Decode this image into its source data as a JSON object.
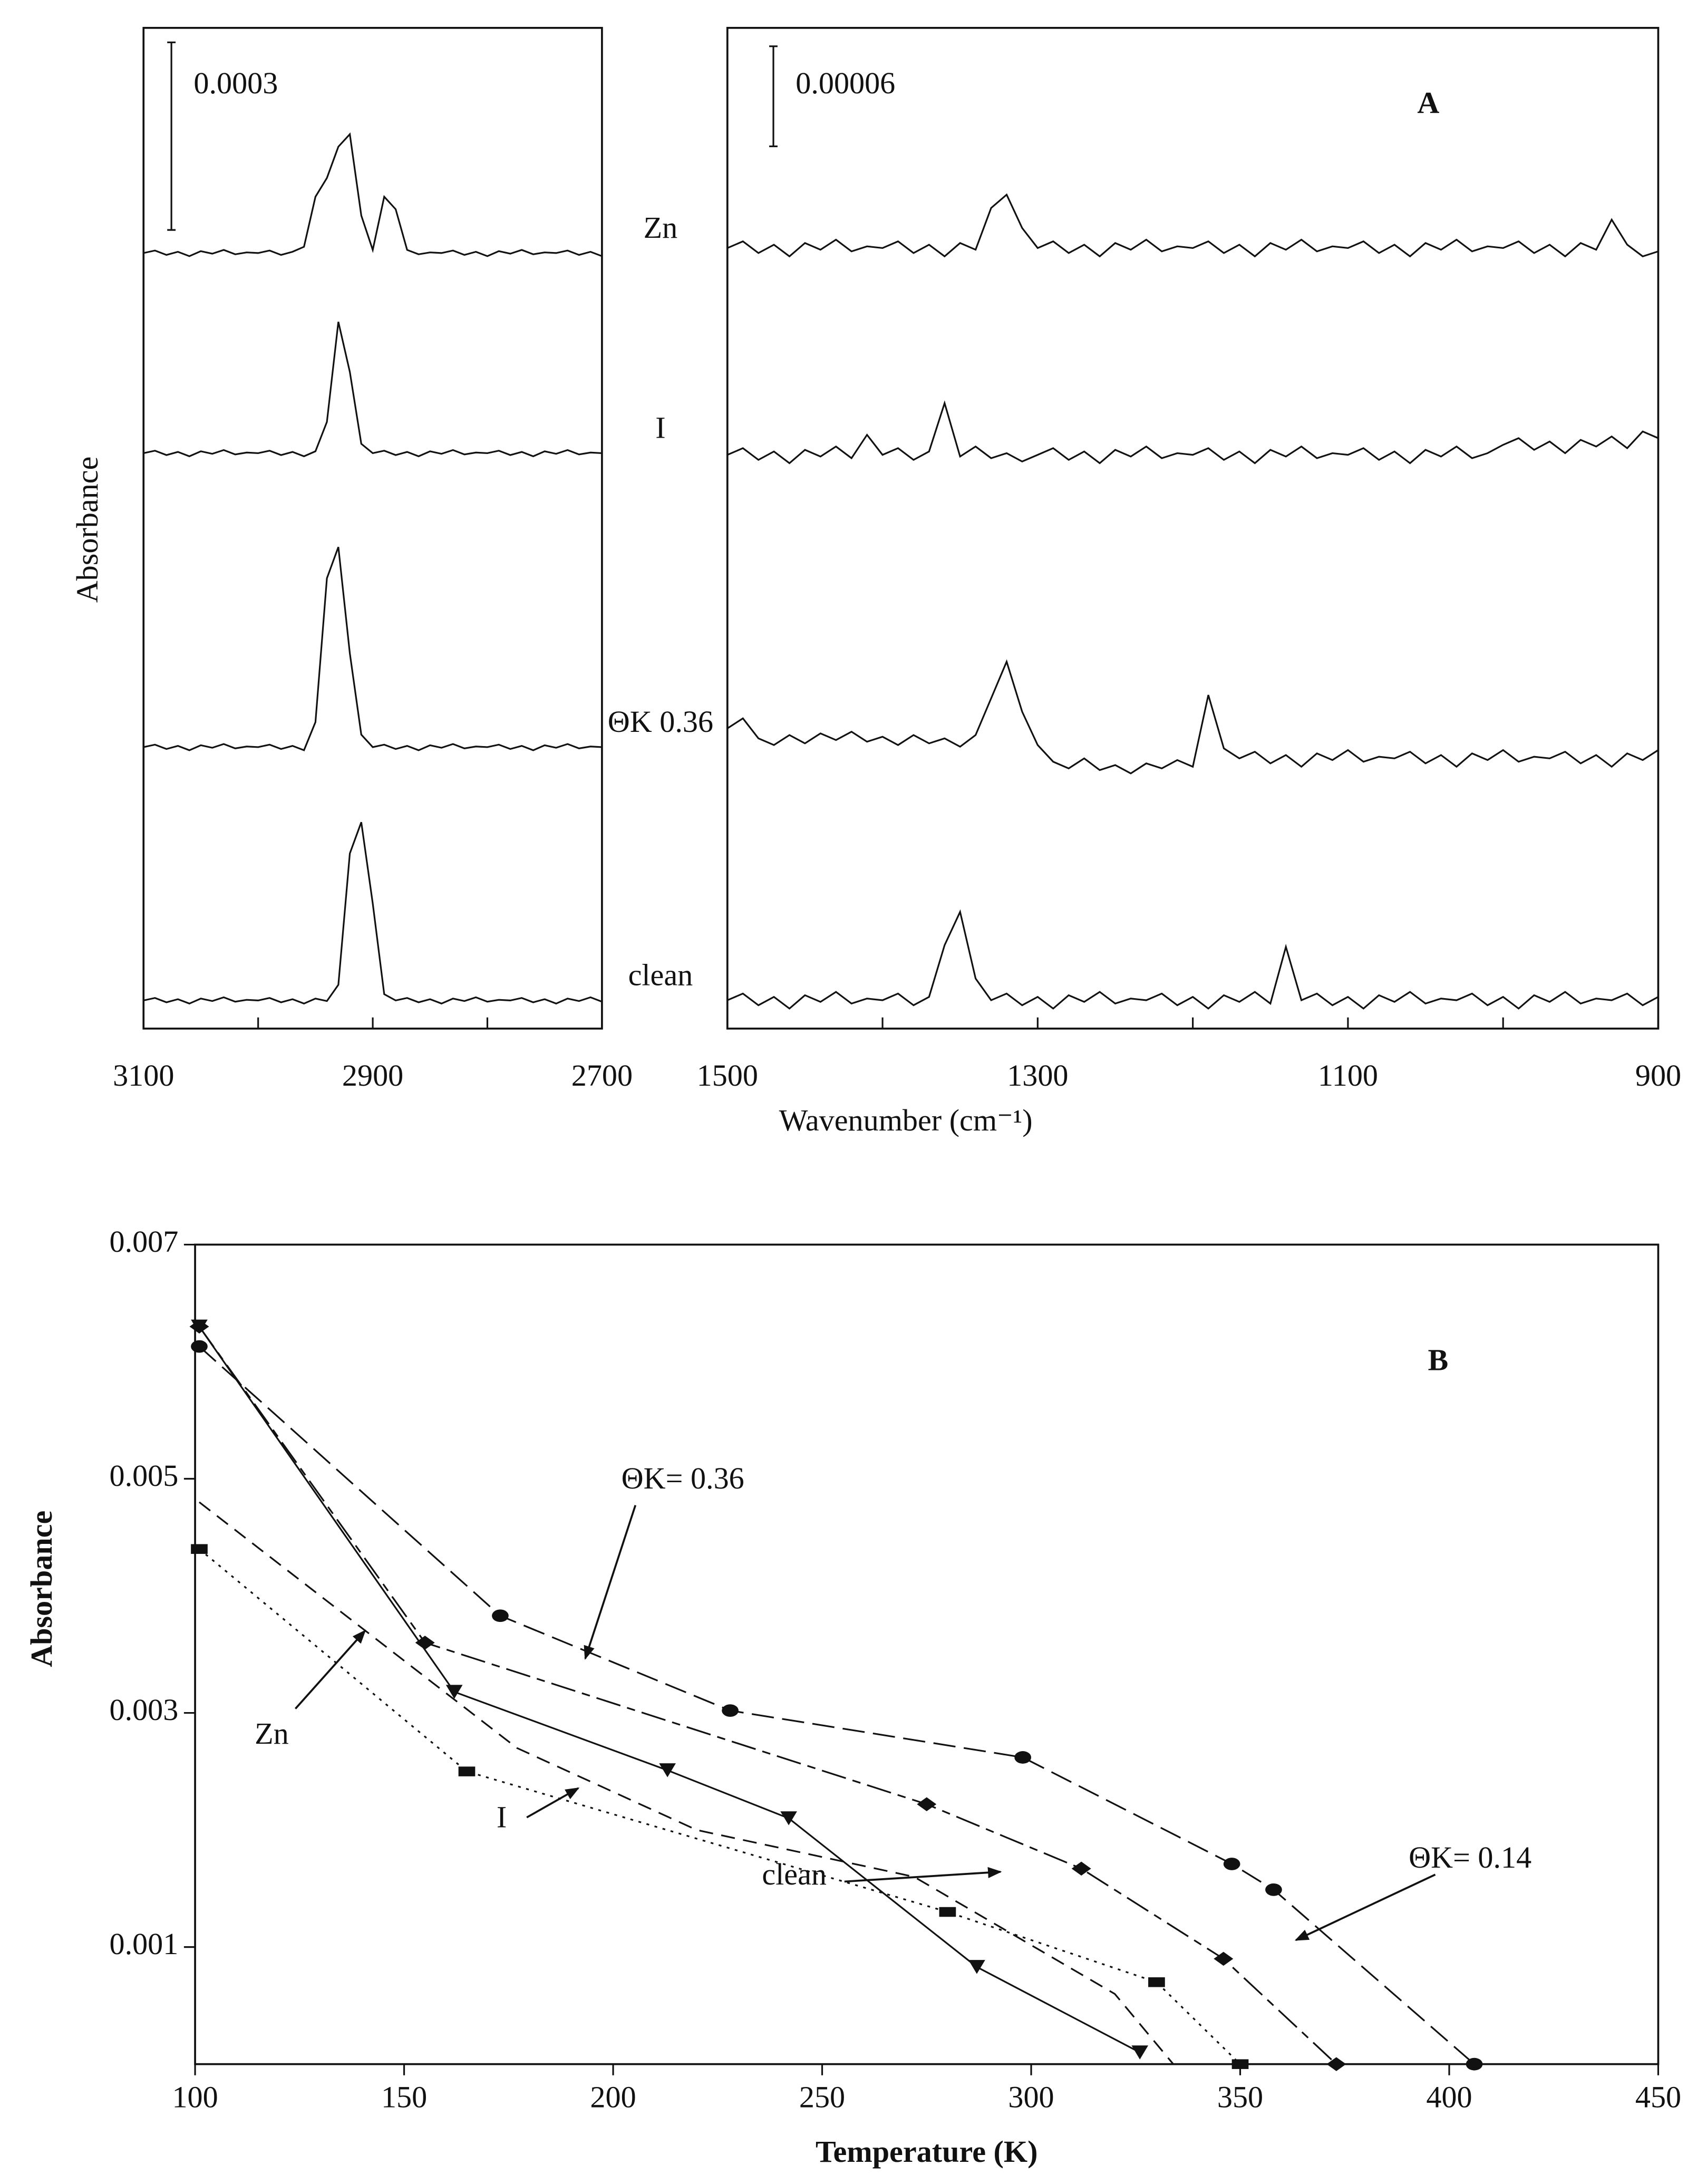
{
  "chart_data": [
    {
      "type": "spectra",
      "ylabel": "Absorbance",
      "xlim": [
        3100,
        2700
      ],
      "xticks": [
        3100,
        2900,
        2700
      ],
      "xminorticks": [
        3000,
        2800
      ],
      "ylim": [
        0,
        0.0016
      ],
      "scale_bar": {
        "value": 0.0003,
        "label": "0.0003"
      },
      "x": [
        3100,
        3090,
        3080,
        3070,
        3060,
        3050,
        3040,
        3030,
        3020,
        3010,
        3000,
        2990,
        2980,
        2970,
        2960,
        2950,
        2940,
        2930,
        2920,
        2910,
        2900,
        2890,
        2880,
        2870,
        2860,
        2850,
        2840,
        2830,
        2820,
        2810,
        2800,
        2790,
        2780,
        2770,
        2760,
        2750,
        2740,
        2730,
        2720,
        2710,
        2700
      ],
      "series": [
        {
          "name": "Zn",
          "color": "#111111",
          "values": [
            0.00124,
            0.001244,
            0.001237,
            0.001242,
            0.001235,
            0.001243,
            0.001239,
            0.001245,
            0.001238,
            0.001241,
            0.00124,
            0.001244,
            0.001237,
            0.001242,
            0.00125,
            0.00133,
            0.00136,
            0.00141,
            0.00143,
            0.0013,
            0.001245,
            0.00133,
            0.00131,
            0.001245,
            0.001238,
            0.001241,
            0.00124,
            0.001244,
            0.001237,
            0.001242,
            0.001235,
            0.001243,
            0.001239,
            0.001245,
            0.001238,
            0.001241,
            0.00124,
            0.001244,
            0.001237,
            0.001242,
            0.001235
          ]
        },
        {
          "name": "I",
          "color": "#111111",
          "values": [
            0.00092,
            0.000924,
            0.000917,
            0.000922,
            0.000915,
            0.000923,
            0.000919,
            0.000925,
            0.000918,
            0.000921,
            0.00092,
            0.000924,
            0.000917,
            0.000922,
            0.000915,
            0.000923,
            0.00097,
            0.00113,
            0.00105,
            0.000935,
            0.00092,
            0.000924,
            0.000917,
            0.000922,
            0.000915,
            0.000923,
            0.000919,
            0.000925,
            0.000918,
            0.000921,
            0.00092,
            0.000924,
            0.000917,
            0.000922,
            0.000915,
            0.000923,
            0.000919,
            0.000925,
            0.000918,
            0.000921,
            0.00092
          ]
        },
        {
          "name": "ΘK 0.36",
          "color": "#111111",
          "values": [
            0.00045,
            0.000454,
            0.000447,
            0.000452,
            0.000445,
            0.000453,
            0.000449,
            0.000455,
            0.000448,
            0.000451,
            0.00045,
            0.000454,
            0.000447,
            0.000452,
            0.000445,
            0.00049,
            0.00072,
            0.00077,
            0.0006,
            0.00047,
            0.00045,
            0.000454,
            0.000447,
            0.000452,
            0.000445,
            0.000453,
            0.000449,
            0.000455,
            0.000448,
            0.000451,
            0.00045,
            0.000454,
            0.000447,
            0.000452,
            0.000445,
            0.000453,
            0.000449,
            0.000455,
            0.000448,
            0.000451,
            0.00045
          ]
        },
        {
          "name": "clean",
          "color": "#111111",
          "values": [
            4.5e-05,
            4.9e-05,
            4.2e-05,
            4.7e-05,
            4e-05,
            4.8e-05,
            4.4e-05,
            5e-05,
            4.3e-05,
            4.6e-05,
            4.5e-05,
            4.9e-05,
            4.2e-05,
            4.7e-05,
            4e-05,
            4.8e-05,
            4.4e-05,
            7e-05,
            0.00028,
            0.00033,
            0.0002,
            5.5e-05,
            4.5e-05,
            4.9e-05,
            4.2e-05,
            4.7e-05,
            4e-05,
            4.8e-05,
            4.4e-05,
            5e-05,
            4.3e-05,
            4.6e-05,
            4.5e-05,
            4.9e-05,
            4.2e-05,
            4.7e-05,
            4e-05,
            4.8e-05,
            4.4e-05,
            5e-05,
            4.3e-05
          ]
        }
      ]
    },
    {
      "type": "spectra",
      "xlabel": "Wavenumber (cm⁻¹)",
      "annotation": "A",
      "xlim": [
        1500,
        900
      ],
      "xticks": [
        1500,
        1300,
        1100,
        900
      ],
      "xminorticks": [
        1400,
        1200,
        1000
      ],
      "ylim": [
        0,
        0.0006
      ],
      "scale_bar": {
        "value": 6e-05,
        "label": "0.00006"
      },
      "x": [
        1500,
        1490,
        1480,
        1470,
        1460,
        1450,
        1440,
        1430,
        1420,
        1410,
        1400,
        1390,
        1380,
        1370,
        1360,
        1350,
        1340,
        1330,
        1320,
        1310,
        1300,
        1290,
        1280,
        1270,
        1260,
        1250,
        1240,
        1230,
        1220,
        1210,
        1200,
        1190,
        1180,
        1170,
        1160,
        1150,
        1140,
        1130,
        1120,
        1110,
        1100,
        1090,
        1080,
        1070,
        1060,
        1050,
        1040,
        1030,
        1020,
        1010,
        1000,
        990,
        980,
        970,
        960,
        950,
        940,
        930,
        920,
        910,
        900
      ],
      "series": [
        {
          "color": "#111111",
          "values": [
            0.000468,
            0.000472,
            0.000465,
            0.00047,
            0.000463,
            0.000471,
            0.000467,
            0.000473,
            0.000466,
            0.000469,
            0.000468,
            0.000472,
            0.000465,
            0.00047,
            0.000463,
            0.000471,
            0.000467,
            0.000492,
            0.0005,
            0.00048,
            0.000468,
            0.000472,
            0.000465,
            0.00047,
            0.000463,
            0.000471,
            0.000467,
            0.000473,
            0.000466,
            0.000469,
            0.000468,
            0.000472,
            0.000465,
            0.00047,
            0.000463,
            0.000471,
            0.000467,
            0.000473,
            0.000466,
            0.000469,
            0.000468,
            0.000472,
            0.000465,
            0.00047,
            0.000463,
            0.000471,
            0.000467,
            0.000473,
            0.000466,
            0.000469,
            0.000468,
            0.000472,
            0.000465,
            0.00047,
            0.000463,
            0.000471,
            0.000467,
            0.000485,
            0.00047,
            0.000463,
            0.000466
          ]
        },
        {
          "color": "#111111",
          "values": [
            0.000344,
            0.000348,
            0.000341,
            0.000346,
            0.000339,
            0.000347,
            0.000343,
            0.000349,
            0.000342,
            0.000356,
            0.000344,
            0.000348,
            0.000341,
            0.000346,
            0.000375,
            0.000343,
            0.000349,
            0.000342,
            0.000345,
            0.00034,
            0.000344,
            0.000348,
            0.000341,
            0.000346,
            0.000339,
            0.000347,
            0.000343,
            0.000349,
            0.000342,
            0.000345,
            0.000344,
            0.000348,
            0.000341,
            0.000346,
            0.000339,
            0.000347,
            0.000343,
            0.000349,
            0.000342,
            0.000345,
            0.000344,
            0.000348,
            0.000341,
            0.000346,
            0.000339,
            0.000347,
            0.000343,
            0.000349,
            0.000342,
            0.000345,
            0.00035,
            0.000354,
            0.000347,
            0.000352,
            0.000345,
            0.000353,
            0.000349,
            0.000355,
            0.000348,
            0.000358,
            0.000354
          ]
        },
        {
          "color": "#111111",
          "values": [
            0.00018,
            0.000186,
            0.000174,
            0.00017,
            0.000176,
            0.000171,
            0.000177,
            0.000173,
            0.000178,
            0.000172,
            0.000175,
            0.00017,
            0.000176,
            0.000171,
            0.000174,
            0.000169,
            0.000176,
            0.000198,
            0.00022,
            0.00019,
            0.00017,
            0.00016,
            0.000156,
            0.000162,
            0.000155,
            0.000158,
            0.000153,
            0.000159,
            0.000156,
            0.000161,
            0.000157,
            0.0002,
            0.000168,
            0.000162,
            0.000166,
            0.000159,
            0.000164,
            0.000157,
            0.000165,
            0.000161,
            0.000167,
            0.00016,
            0.000163,
            0.000162,
            0.000166,
            0.000159,
            0.000164,
            0.000157,
            0.000165,
            0.000161,
            0.000167,
            0.00016,
            0.000163,
            0.000162,
            0.000166,
            0.000159,
            0.000164,
            0.000157,
            0.000165,
            0.000161,
            0.000167
          ]
        },
        {
          "color": "#111111",
          "values": [
            1.7e-05,
            2.1e-05,
            1.4e-05,
            1.9e-05,
            1.2e-05,
            2e-05,
            1.6e-05,
            2.2e-05,
            1.5e-05,
            1.8e-05,
            1.7e-05,
            2.1e-05,
            1.4e-05,
            1.9e-05,
            5e-05,
            7e-05,
            3e-05,
            1.7e-05,
            2.1e-05,
            1.4e-05,
            1.9e-05,
            1.2e-05,
            2e-05,
            1.6e-05,
            2.2e-05,
            1.5e-05,
            1.8e-05,
            1.7e-05,
            2.1e-05,
            1.4e-05,
            1.9e-05,
            1.2e-05,
            2e-05,
            1.6e-05,
            2.2e-05,
            1.5e-05,
            4.9e-05,
            1.7e-05,
            2.1e-05,
            1.4e-05,
            1.9e-05,
            1.2e-05,
            2e-05,
            1.6e-05,
            2.2e-05,
            1.5e-05,
            1.8e-05,
            1.7e-05,
            2.1e-05,
            1.4e-05,
            1.9e-05,
            1.2e-05,
            2e-05,
            1.6e-05,
            2.2e-05,
            1.5e-05,
            1.8e-05,
            1.7e-05,
            2.1e-05,
            1.4e-05,
            1.9e-05
          ]
        }
      ]
    },
    {
      "type": "line",
      "annotation": "B",
      "xlabel": "Temperature (K)",
      "ylabel": "Absorbance",
      "xlim": [
        100,
        450
      ],
      "xticks": [
        100,
        150,
        200,
        250,
        300,
        350,
        400,
        450
      ],
      "ylim": [
        0,
        0.007
      ],
      "yticks": [
        0.001,
        0.003,
        0.005,
        0.007
      ],
      "series": [
        {
          "name": "ΘK= 0.36",
          "color": "#111111",
          "marker": "circle",
          "dash": "long",
          "x": [
            101,
            173,
            228,
            298,
            348,
            358,
            406
          ],
          "values": [
            0.00613,
            0.00383,
            0.00302,
            0.00262,
            0.00171,
            0.00149,
            0
          ]
        },
        {
          "name": "ΘK= 0.14",
          "color": "#111111",
          "marker": "diamond",
          "dash": "dashdot",
          "x": [
            101,
            155,
            275,
            312,
            346,
            373
          ],
          "values": [
            0.0063,
            0.0036,
            0.00222,
            0.00167,
            0.0009,
            0
          ]
        },
        {
          "name": "clean",
          "color": "#111111",
          "marker": "triangle",
          "dash": "solid",
          "x": [
            101,
            162,
            213,
            242,
            287,
            326
          ],
          "values": [
            0.0063,
            0.00318,
            0.00251,
            0.0021,
            0.00083,
            0.0001
          ]
        },
        {
          "name": "Zn",
          "color": "#111111",
          "marker": "none",
          "dash": "dash",
          "x": [
            101,
            177,
            220,
            272,
            320,
            334
          ],
          "values": [
            0.0048,
            0.0027,
            0.002,
            0.0016,
            0.0006,
            0
          ]
        },
        {
          "name": "I",
          "color": "#111111",
          "marker": "square",
          "dash": "dot",
          "x": [
            101,
            165,
            280,
            330,
            350
          ],
          "values": [
            0.0044,
            0.0025,
            0.0013,
            0.0007,
            0
          ]
        }
      ]
    }
  ]
}
